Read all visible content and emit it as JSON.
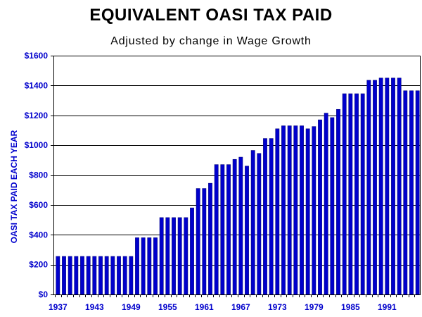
{
  "chart_data": {
    "type": "bar",
    "title": "EQUIVALENT OASI TAX PAID",
    "subtitle": "Adjusted by change in Wage Growth",
    "ylabel": "OASI TAX PAID EACH YEAR",
    "xlabel": "",
    "ylim": [
      0,
      1600
    ],
    "yticks": [
      "$0",
      "$200",
      "$400",
      "$600",
      "$800",
      "$1000",
      "$1200",
      "$1400",
      "$1600"
    ],
    "ytick_values": [
      0,
      200,
      400,
      600,
      800,
      1000,
      1200,
      1400,
      1600
    ],
    "xtick_labels": [
      "1937",
      "1943",
      "1949",
      "1955",
      "1961",
      "1967",
      "1973",
      "1979",
      "1985",
      "1991"
    ],
    "grid": true,
    "bar_color": "#0000cc",
    "categories": [
      1937,
      1938,
      1939,
      1940,
      1941,
      1942,
      1943,
      1944,
      1945,
      1946,
      1947,
      1948,
      1949,
      1950,
      1951,
      1952,
      1953,
      1954,
      1955,
      1956,
      1957,
      1958,
      1959,
      1960,
      1961,
      1962,
      1963,
      1964,
      1965,
      1966,
      1967,
      1968,
      1969,
      1970,
      1971,
      1972,
      1973,
      1974,
      1975,
      1976,
      1977,
      1978,
      1979,
      1980,
      1981,
      1982,
      1983,
      1984,
      1985,
      1986,
      1987,
      1988,
      1989,
      1990,
      1991,
      1992,
      1993,
      1994,
      1995,
      1996
    ],
    "values": [
      255,
      255,
      255,
      255,
      255,
      255,
      255,
      255,
      255,
      255,
      255,
      255,
      255,
      380,
      380,
      380,
      380,
      515,
      515,
      515,
      515,
      515,
      580,
      710,
      710,
      745,
      870,
      870,
      870,
      905,
      920,
      860,
      965,
      945,
      1045,
      1045,
      1110,
      1130,
      1130,
      1130,
      1130,
      1110,
      1125,
      1170,
      1215,
      1185,
      1240,
      1345,
      1345,
      1345,
      1345,
      1435,
      1435,
      1450,
      1450,
      1450,
      1450,
      1365,
      1365,
      1365
    ]
  }
}
